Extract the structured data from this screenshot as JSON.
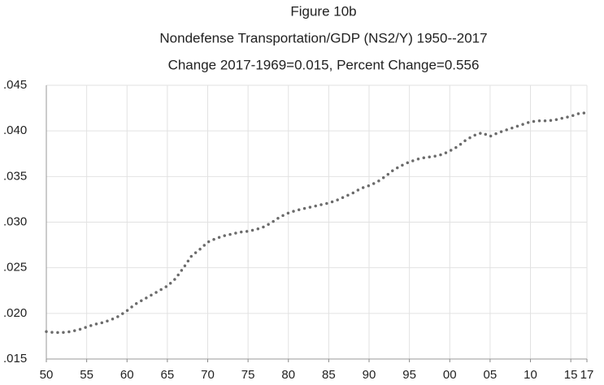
{
  "chart_data": {
    "type": "line",
    "title": "Figure 10b",
    "subtitle": "Nondefense Transportation/GDP  (NS2/Y)  1950--2017",
    "annotation": "Change 2017-1969=0.015, Percent Change=0.556",
    "x": [
      1950,
      1951,
      1952,
      1953,
      1954,
      1955,
      1956,
      1957,
      1958,
      1959,
      1960,
      1961,
      1962,
      1963,
      1964,
      1965,
      1966,
      1967,
      1968,
      1969,
      1970,
      1971,
      1972,
      1973,
      1974,
      1975,
      1976,
      1977,
      1978,
      1979,
      1980,
      1981,
      1982,
      1983,
      1984,
      1985,
      1986,
      1987,
      1988,
      1989,
      1990,
      1991,
      1992,
      1993,
      1994,
      1995,
      1996,
      1997,
      1998,
      1999,
      2000,
      2001,
      2002,
      2003,
      2004,
      2005,
      2006,
      2007,
      2008,
      2009,
      2010,
      2011,
      2012,
      2013,
      2014,
      2015,
      2016,
      2017
    ],
    "series": [
      {
        "name": "NS2/Y",
        "color": "#6b6b6b",
        "values": [
          0.018,
          0.0179,
          0.0179,
          0.018,
          0.0182,
          0.0185,
          0.0188,
          0.019,
          0.0193,
          0.0197,
          0.0203,
          0.021,
          0.0215,
          0.022,
          0.0225,
          0.023,
          0.0238,
          0.025,
          0.0263,
          0.027,
          0.0278,
          0.0282,
          0.0285,
          0.0287,
          0.0289,
          0.029,
          0.0292,
          0.0295,
          0.03,
          0.0306,
          0.031,
          0.0313,
          0.0315,
          0.0317,
          0.0319,
          0.0321,
          0.0324,
          0.0328,
          0.0332,
          0.0337,
          0.034,
          0.0344,
          0.035,
          0.0357,
          0.0362,
          0.0366,
          0.0369,
          0.0371,
          0.0372,
          0.0374,
          0.0378,
          0.0383,
          0.039,
          0.0395,
          0.0398,
          0.0394,
          0.0398,
          0.0401,
          0.0404,
          0.0407,
          0.041,
          0.0411,
          0.0411,
          0.0412,
          0.0414,
          0.0416,
          0.0419,
          0.042
        ]
      }
    ],
    "xlim": [
      1950,
      2017
    ],
    "xticks": [
      {
        "value": 1950,
        "label": "50"
      },
      {
        "value": 1955,
        "label": "55"
      },
      {
        "value": 1960,
        "label": "60"
      },
      {
        "value": 1965,
        "label": "65"
      },
      {
        "value": 1970,
        "label": "70"
      },
      {
        "value": 1975,
        "label": "75"
      },
      {
        "value": 1980,
        "label": "80"
      },
      {
        "value": 1985,
        "label": "85"
      },
      {
        "value": 1990,
        "label": "90"
      },
      {
        "value": 1995,
        "label": "95"
      },
      {
        "value": 2000,
        "label": "00"
      },
      {
        "value": 2005,
        "label": "05"
      },
      {
        "value": 2010,
        "label": "10"
      },
      {
        "value": 2015,
        "label": "15"
      },
      {
        "value": 2017,
        "label": "17"
      }
    ],
    "ylim": [
      0.015,
      0.045
    ],
    "yticks": [
      {
        "value": 0.015,
        "label": ".015"
      },
      {
        "value": 0.02,
        "label": ".020"
      },
      {
        "value": 0.025,
        "label": ".025"
      },
      {
        "value": 0.03,
        "label": ".030"
      },
      {
        "value": 0.035,
        "label": ".035"
      },
      {
        "value": 0.04,
        "label": ".040"
      },
      {
        "value": 0.045,
        "label": ".045"
      }
    ],
    "grid": true
  }
}
